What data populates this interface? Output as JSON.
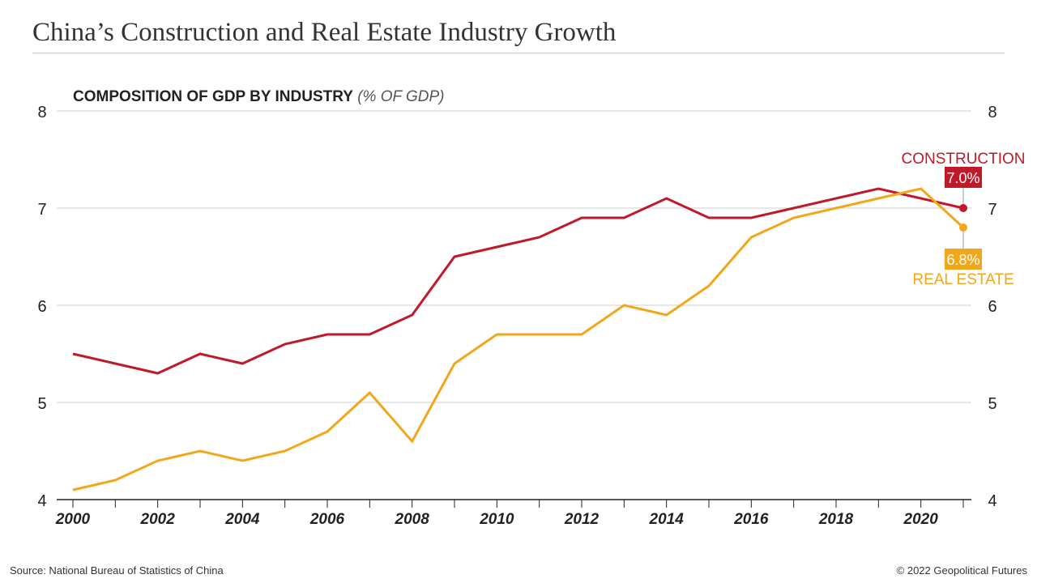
{
  "title": "China’s Construction and Real Estate Industry Growth",
  "source": "Source: National Bureau of Statistics of China",
  "copyright": "© 2022 Geopolitical Futures",
  "chart_data": {
    "type": "line",
    "title": "COMPOSITION OF GDP BY INDUSTRY",
    "title_unit": "(% OF GDP)",
    "x": [
      2000,
      2001,
      2002,
      2003,
      2004,
      2005,
      2006,
      2007,
      2008,
      2009,
      2010,
      2011,
      2012,
      2013,
      2014,
      2015,
      2016,
      2017,
      2018,
      2019,
      2020,
      2021
    ],
    "x_tick_labels": [
      "2000",
      "2002",
      "2004",
      "2006",
      "2008",
      "2010",
      "2012",
      "2014",
      "2016",
      "2018",
      "2020"
    ],
    "y_ticks": [
      4,
      5,
      6,
      7,
      8
    ],
    "ylim": [
      4,
      8
    ],
    "xlim": [
      2000,
      2021
    ],
    "grid": true,
    "y_axis": "both sides",
    "series": [
      {
        "name": "CONSTRUCTION",
        "color": "#c0192a",
        "values": [
          5.5,
          5.4,
          5.3,
          5.5,
          5.4,
          5.6,
          5.7,
          5.7,
          5.9,
          6.5,
          6.6,
          6.7,
          6.9,
          6.9,
          7.1,
          6.9,
          6.9,
          7.0,
          7.1,
          7.2,
          7.1,
          7.0
        ],
        "end_label": "7.0%"
      },
      {
        "name": "REAL ESTATE",
        "color": "#f2a71b",
        "values": [
          4.1,
          4.2,
          4.4,
          4.5,
          4.4,
          4.5,
          4.7,
          5.1,
          4.6,
          5.4,
          5.7,
          5.7,
          5.7,
          6.0,
          5.9,
          6.2,
          6.7,
          6.9,
          7.0,
          7.1,
          7.2,
          6.8
        ],
        "end_label": "6.8%"
      }
    ]
  }
}
